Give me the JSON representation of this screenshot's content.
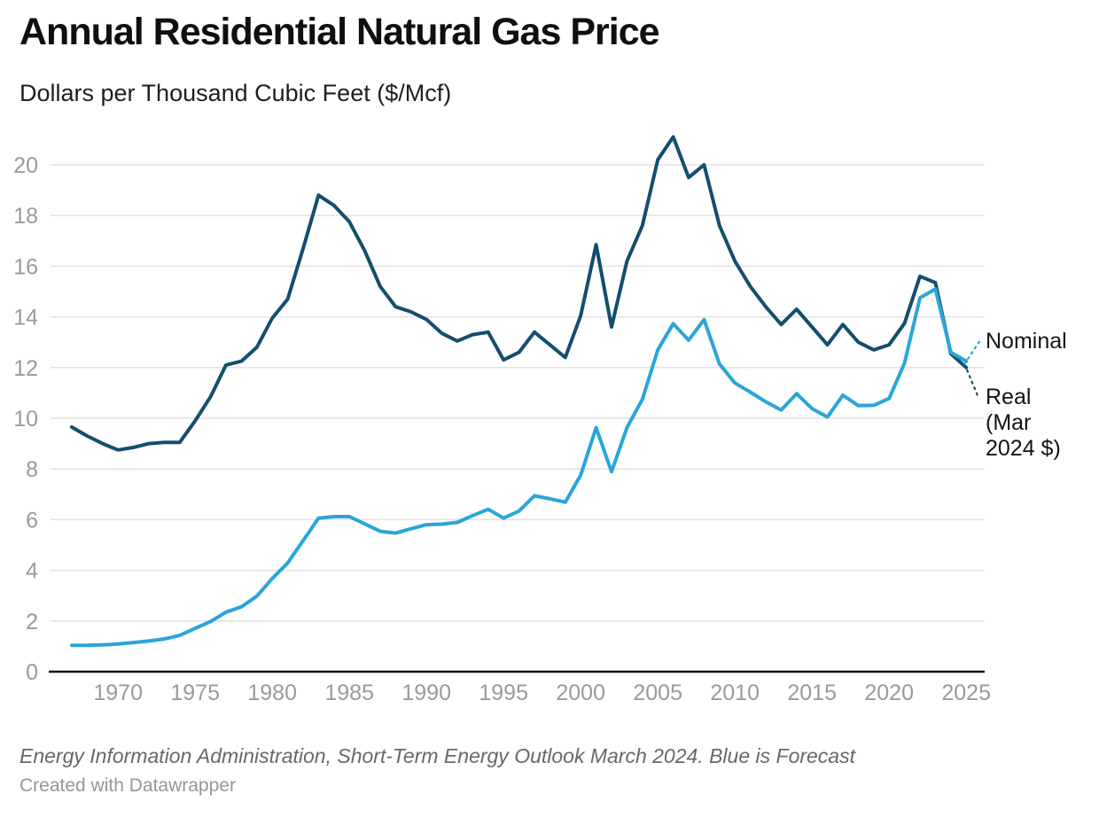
{
  "header": {
    "title": "Annual Residential Natural Gas Price",
    "subtitle": "Dollars per Thousand Cubic Feet ($/Mcf)"
  },
  "annotations": {
    "nominal_label": "Nominal",
    "real_label": "Real (Mar 2024 $)"
  },
  "footer": {
    "source_note": "Energy Information Administration, Short-Term Energy Outlook March 2024. Blue is Forecast",
    "attribution": "Created with Datawrapper"
  },
  "colors": {
    "real": "#134e6d",
    "nominal": "#2aa5d8",
    "grid": "#e2e2e2",
    "axis": "#121212",
    "tick_text": "#9a9a9a"
  },
  "chart_data": {
    "type": "line",
    "title": "Annual Residential Natural Gas Price",
    "ylabel": "Dollars per Thousand Cubic Feet ($/Mcf)",
    "xlabel": "Year",
    "grid": true,
    "legend_position": "inline-right",
    "xlim": [
      1967,
      2025
    ],
    "ylim": [
      0,
      21.5
    ],
    "y_ticks": [
      0,
      2,
      4,
      6,
      8,
      10,
      12,
      14,
      16,
      18,
      20
    ],
    "x_ticks": [
      1970,
      1975,
      1980,
      1985,
      1990,
      1995,
      2000,
      2005,
      2010,
      2015,
      2020,
      2025
    ],
    "forecast_note": "Blue is Forecast",
    "forecast_years": [
      2024,
      2025
    ],
    "x": [
      1967,
      1968,
      1969,
      1970,
      1971,
      1972,
      1973,
      1974,
      1975,
      1976,
      1977,
      1978,
      1979,
      1980,
      1981,
      1982,
      1983,
      1984,
      1985,
      1986,
      1987,
      1988,
      1989,
      1990,
      1991,
      1992,
      1993,
      1994,
      1995,
      1996,
      1997,
      1998,
      1999,
      2000,
      2001,
      2002,
      2003,
      2004,
      2005,
      2006,
      2007,
      2008,
      2009,
      2010,
      2011,
      2012,
      2013,
      2014,
      2015,
      2016,
      2017,
      2018,
      2019,
      2020,
      2021,
      2022,
      2023,
      2024,
      2025
    ],
    "series": [
      {
        "name": "Real (Mar 2024 $)",
        "color_key": "real",
        "values": [
          9.65,
          9.3,
          9.0,
          8.75,
          8.85,
          9.0,
          9.05,
          9.05,
          9.9,
          10.85,
          12.1,
          12.25,
          12.8,
          13.95,
          14.7,
          16.7,
          18.8,
          18.4,
          17.75,
          16.6,
          15.2,
          14.4,
          14.2,
          13.9,
          13.35,
          13.05,
          13.3,
          13.4,
          12.3,
          12.6,
          13.4,
          12.9,
          12.4,
          14.05,
          16.85,
          13.6,
          16.2,
          17.6,
          20.2,
          21.1,
          19.5,
          20.0,
          17.6,
          16.2,
          15.2,
          14.4,
          13.7,
          14.3,
          13.6,
          12.9,
          13.7,
          13.0,
          12.7,
          12.9,
          13.75,
          15.6,
          15.35,
          12.55,
          12.0
        ]
      },
      {
        "name": "Nominal",
        "color_key": "nominal",
        "values": [
          1.04,
          1.04,
          1.06,
          1.09,
          1.15,
          1.21,
          1.29,
          1.43,
          1.71,
          1.98,
          2.35,
          2.56,
          2.98,
          3.68,
          4.29,
          5.17,
          6.06,
          6.12,
          6.12,
          5.83,
          5.54,
          5.47,
          5.64,
          5.8,
          5.82,
          5.89,
          6.16,
          6.41,
          6.06,
          6.34,
          6.94,
          6.82,
          6.69,
          7.76,
          9.63,
          7.89,
          9.63,
          10.75,
          12.7,
          13.73,
          13.08,
          13.89,
          12.14,
          11.39,
          11.03,
          10.65,
          10.32,
          10.97,
          10.38,
          10.05,
          10.91,
          10.5,
          10.51,
          10.78,
          12.18,
          14.75,
          15.1,
          12.6,
          12.25
        ]
      }
    ]
  }
}
